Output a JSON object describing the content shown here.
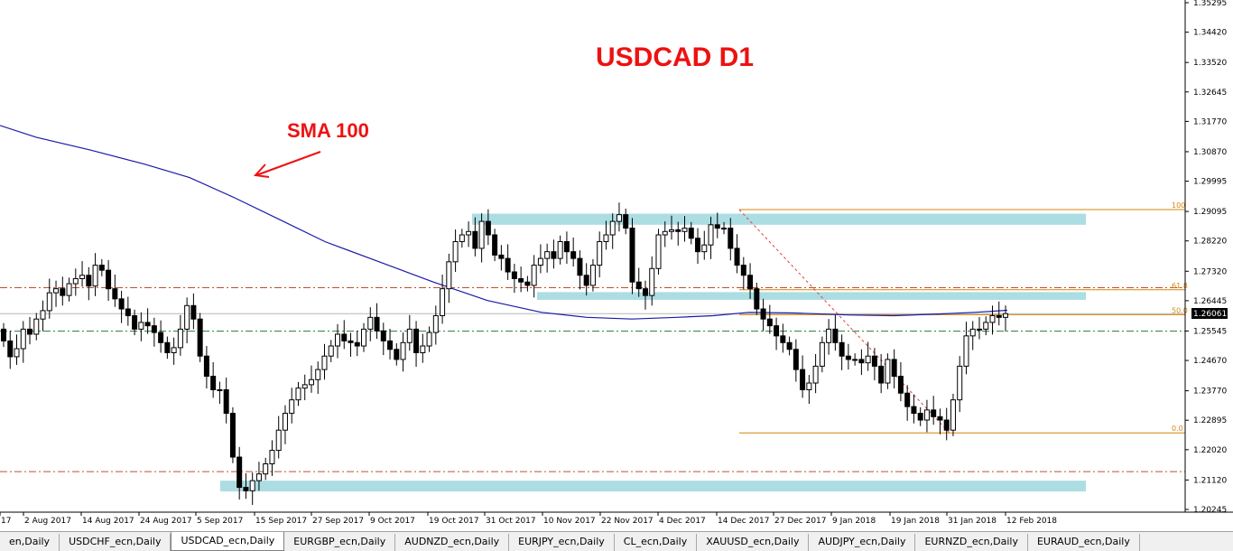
{
  "chart": {
    "title": "USDCAD D1",
    "annotation": "SMA 100",
    "current_price_label": "1.26061",
    "colors": {
      "title": "#ee1111",
      "sma": "#1a1aaa",
      "zone": "#acdde3",
      "fib": "#d4870a",
      "dashdot_red": "#c0502a",
      "dashdot_green": "#2a7a3a",
      "fib_trend": "#e04040"
    }
  },
  "chart_data": {
    "type": "candlestick",
    "symbol": "USDCAD",
    "timeframe": "D1",
    "price_axis_labels": [
      "1.35295",
      "1.34420",
      "1.33520",
      "1.32645",
      "1.31770",
      "1.30870",
      "1.29995",
      "1.29095",
      "1.28220",
      "1.27320",
      "1.26445",
      "1.25545",
      "1.24670",
      "1.23770",
      "1.22895",
      "1.22020",
      "1.21120",
      "1.20245"
    ],
    "price_range": [
      1.2024,
      1.3529
    ],
    "date_axis_labels": [
      "17",
      "2 Aug 2017",
      "14 Aug 2017",
      "24 Aug 2017",
      "5 Sep 2017",
      "15 Sep 2017",
      "27 Sep 2017",
      "9 Oct 2017",
      "19 Oct 2017",
      "31 Oct 2017",
      "10 Nov 2017",
      "22 Nov 2017",
      "4 Dec 2017",
      "14 Dec 2017",
      "27 Dec 2017",
      "9 Jan 2018",
      "19 Jan 2018",
      "31 Jan 2018",
      "12 Feb 2018"
    ],
    "fibonacci_levels": [
      {
        "label": "100",
        "price": 1.2915
      },
      {
        "label": "61.8",
        "price": 1.2677
      },
      {
        "label": "50.0",
        "price": 1.2603
      },
      {
        "label": "0.0",
        "price": 1.2252
      }
    ],
    "horizontal_lines": [
      {
        "style": "dash-dot",
        "color": "red",
        "price": 1.2683
      },
      {
        "style": "dash-dot",
        "color": "green",
        "price": 1.2554
      },
      {
        "style": "dash-dot",
        "color": "red",
        "price": 1.2137
      }
    ],
    "zones": [
      {
        "from": 1.2903,
        "to": 1.287
      },
      {
        "from": 1.267,
        "to": 1.2647
      },
      {
        "from": 1.211,
        "to": 1.2078
      }
    ],
    "close_sequence": [
      1.2525,
      1.2478,
      1.2502,
      1.256,
      1.2545,
      1.259,
      1.2615,
      1.2668,
      1.268,
      1.266,
      1.2695,
      1.271,
      1.272,
      1.2688,
      1.275,
      1.2735,
      1.268,
      1.265,
      1.262,
      1.26,
      1.256,
      1.258,
      1.257,
      1.255,
      1.252,
      1.249,
      1.2505,
      1.256,
      1.263,
      1.259,
      1.248,
      1.242,
      1.238,
      1.238,
      1.231,
      1.218,
      1.209,
      1.208,
      1.211,
      1.213,
      1.216,
      1.22,
      1.226,
      1.231,
      1.235,
      1.2385,
      1.2395,
      1.241,
      1.244,
      1.248,
      1.251,
      1.2545,
      1.2525,
      1.252,
      1.251,
      1.256,
      1.2595,
      1.2555,
      1.2525,
      1.25,
      1.247,
      1.252,
      1.256,
      1.249,
      1.251,
      1.255,
      1.26,
      1.268,
      1.276,
      1.282,
      1.284,
      1.285,
      1.28,
      1.288,
      1.284,
      1.278,
      1.277,
      1.273,
      1.271,
      1.27,
      1.269,
      1.275,
      1.277,
      1.279,
      1.277,
      1.282,
      1.279,
      1.277,
      1.272,
      1.269,
      1.275,
      1.282,
      1.284,
      1.288,
      1.29,
      1.286,
      1.27,
      1.268,
      1.266,
      1.274,
      1.284,
      1.285,
      1.2855,
      1.285,
      1.286,
      1.283,
      1.279,
      1.281,
      1.287,
      1.286,
      1.286,
      1.28,
      1.275,
      1.272,
      1.268,
      1.262,
      1.259,
      1.257,
      1.254,
      1.252,
      1.25,
      1.244,
      1.238,
      1.24,
      1.245,
      1.252,
      1.256,
      1.252,
      1.248,
      1.247,
      1.247,
      1.246,
      1.248,
      1.245,
      1.24,
      1.247,
      1.242,
      1.237,
      1.233,
      1.231,
      1.229,
      1.232,
      1.23,
      1.229,
      1.226,
      1.235,
      1.245,
      1.254,
      1.256,
      1.256,
      1.258,
      1.26,
      1.2595,
      1.2606
    ]
  },
  "tabs": [
    {
      "label": "en,Daily",
      "active": false
    },
    {
      "label": "USDCHF_ecn,Daily",
      "active": false
    },
    {
      "label": "USDCAD_ecn,Daily",
      "active": true
    },
    {
      "label": "EURGBP_ecn,Daily",
      "active": false
    },
    {
      "label": "AUDNZD_ecn,Daily",
      "active": false
    },
    {
      "label": "EURJPY_ecn,Daily",
      "active": false
    },
    {
      "label": "CL_ecn,Daily",
      "active": false
    },
    {
      "label": "XAUUSD_ecn,Daily",
      "active": false
    },
    {
      "label": "AUDJPY_ecn,Daily",
      "active": false
    },
    {
      "label": "EURNZD_ecn,Daily",
      "active": false
    },
    {
      "label": "EURAUD_ecn,Daily",
      "active": false
    }
  ]
}
